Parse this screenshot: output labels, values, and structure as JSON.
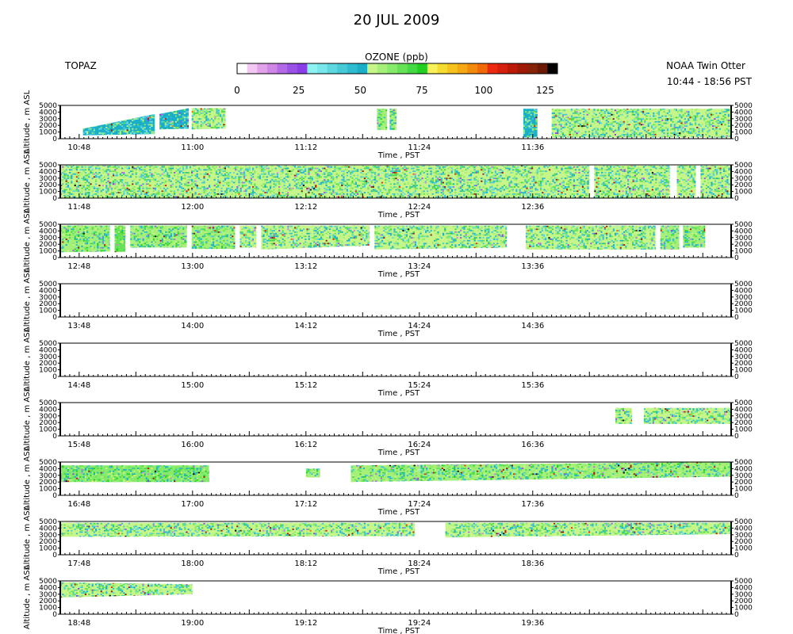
{
  "chart_data": {
    "type": "heatmap",
    "title": "20 JUL 2009",
    "site": "TOPAZ",
    "platform": "NOAA Twin Otter",
    "time_range": "10:44 - 18:56 PST",
    "colorbar": {
      "label": "OZONE (ppb)",
      "ticks": [
        "0",
        "25",
        "50",
        "75",
        "100",
        "125"
      ],
      "range": [
        0,
        130
      ],
      "colors": [
        "#ffffff",
        "#f2c8f2",
        "#e2a2ea",
        "#cf86e6",
        "#b46ae6",
        "#9a52e6",
        "#8a3ee8",
        "#8ef2f2",
        "#78e6ea",
        "#5ed8e0",
        "#46cad8",
        "#30bcd0",
        "#1aaec8",
        "#c6f58a",
        "#a6f07a",
        "#86ea6a",
        "#66e256",
        "#44da44",
        "#22d022",
        "#f8f25a",
        "#f5dc32",
        "#f5c21e",
        "#f5a814",
        "#f28a0c",
        "#f06a08",
        "#ec2a10",
        "#d4200c",
        "#bc1a08",
        "#a01806",
        "#862208",
        "#6c1a04",
        "#000000"
      ]
    },
    "ylabel": "Altitude , m ASL",
    "xlabel": "Time , PST",
    "yticks": [
      "0",
      "1000",
      "2000",
      "3000",
      "4000",
      "5000"
    ],
    "ylim": [
      0,
      5000
    ],
    "panels": [
      {
        "xticks": [
          "10:48",
          "11:00",
          "11:12",
          "11:24",
          "11:36"
        ],
        "segments": [
          {
            "t": [
              4.8,
              20
            ],
            "bottom": [
              500,
              700
            ],
            "top": [
              1500,
              3700
            ],
            "mean": 50
          },
          {
            "t": [
              21,
              27.2
            ],
            "bottom": [
              1400,
              1500
            ],
            "top": [
              3700,
              4600
            ],
            "mean": 52
          },
          {
            "t": [
              27.8,
              35
            ],
            "bottom": [
              1400,
              1500
            ],
            "top": [
              4600,
              4600
            ],
            "mean": 55
          },
          {
            "t": [
              67,
              69.2
            ],
            "bottom": [
              1300,
              1300
            ],
            "top": [
              4500,
              4500
            ],
            "mean": 60
          },
          {
            "t": [
              69.7,
              71.2
            ],
            "bottom": [
              1300,
              1300
            ],
            "top": [
              4500,
              4500
            ],
            "mean": 60
          },
          {
            "t": [
              98,
              101
            ],
            "bottom": [
              200,
              200
            ],
            "top": [
              4500,
              4500
            ],
            "mean": 52
          },
          {
            "t": [
              104,
              142
            ],
            "bottom": [
              200,
              200
            ],
            "top": [
              4500,
              4500
            ],
            "mean": 55
          }
        ]
      },
      {
        "xticks": [
          "11:48",
          "12:00",
          "12:12",
          "12:24",
          "12:36"
        ],
        "segments": [
          {
            "t": [
              0,
              112
            ],
            "bottom": [
              0,
              0
            ],
            "top": [
              4900,
              4900
            ],
            "mean": 55
          },
          {
            "t": [
              113,
              129
            ],
            "bottom": [
              0,
              0
            ],
            "top": [
              4900,
              4900
            ],
            "mean": 55
          },
          {
            "t": [
              130.5,
              134.5
            ],
            "bottom": [
              0,
              0
            ],
            "top": [
              4900,
              4900
            ],
            "mean": 55
          },
          {
            "t": [
              135.5,
              142
            ],
            "bottom": [
              0,
              0
            ],
            "top": [
              4900,
              4900
            ],
            "mean": 55
          }
        ]
      },
      {
        "xticks": [
          "12:48",
          "13:00",
          "13:12",
          "13:24",
          "13:36"
        ],
        "segments": [
          {
            "t": [
              0,
              10.5
            ],
            "bottom": [
              800,
              900
            ],
            "top": [
              4800,
              4800
            ],
            "mean": 60
          },
          {
            "t": [
              11.5,
              13.8
            ],
            "bottom": [
              800,
              900
            ],
            "top": [
              4800,
              4800
            ],
            "mean": 65
          },
          {
            "t": [
              14.8,
              26.8
            ],
            "bottom": [
              1500,
              1500
            ],
            "top": [
              4800,
              4800
            ],
            "mean": 60
          },
          {
            "t": [
              27.8,
              37
            ],
            "bottom": [
              1300,
              1300
            ],
            "top": [
              4800,
              4800
            ],
            "mean": 58
          },
          {
            "t": [
              38,
              41.5
            ],
            "bottom": [
              1500,
              1500
            ],
            "top": [
              4800,
              4800
            ],
            "mean": 55
          },
          {
            "t": [
              42.5,
              65.5
            ],
            "bottom": [
              1200,
              1800
            ],
            "top": [
              4800,
              4800
            ],
            "mean": 55
          },
          {
            "t": [
              66.5,
              94.5
            ],
            "bottom": [
              1200,
              1500
            ],
            "top": [
              4800,
              4800
            ],
            "mean": 55
          },
          {
            "t": [
              98.5,
              126
            ],
            "bottom": [
              1200,
              1200
            ],
            "top": [
              4800,
              4800
            ],
            "mean": 55
          },
          {
            "t": [
              127,
              131
            ],
            "bottom": [
              1200,
              1200
            ],
            "top": [
              4800,
              4800
            ],
            "mean": 58
          },
          {
            "t": [
              131.8,
              136.5
            ],
            "bottom": [
              1500,
              1500
            ],
            "top": [
              4800,
              4800
            ],
            "mean": 60
          }
        ]
      },
      {
        "xticks": [
          "13:48",
          "14:00",
          "14:12",
          "14:24",
          "14:36"
        ],
        "segments": []
      },
      {
        "xticks": [
          "14:48",
          "15:00",
          "15:12",
          "15:24",
          "15:36"
        ],
        "segments": []
      },
      {
        "xticks": [
          "15:48",
          "16:00",
          "16:12",
          "16:24",
          "16:36"
        ],
        "segments": [
          {
            "t": [
              117.5,
              121
            ],
            "bottom": [
              1800,
              1800
            ],
            "top": [
              4200,
              4200
            ],
            "mean": 55
          },
          {
            "t": [
              123.5,
              142
            ],
            "bottom": [
              1800,
              1800
            ],
            "top": [
              4200,
              4200
            ],
            "mean": 55
          }
        ]
      },
      {
        "xticks": [
          "16:48",
          "17:00",
          "17:12",
          "17:24",
          "17:36"
        ],
        "segments": [
          {
            "t": [
              0,
              31.5
            ],
            "bottom": [
              2000,
              2000
            ],
            "top": [
              4500,
              4500
            ],
            "mean": 62
          },
          {
            "t": [
              52,
              55
            ],
            "bottom": [
              2700,
              2700
            ],
            "top": [
              4000,
              4000
            ],
            "mean": 60
          },
          {
            "t": [
              61.5,
              142
            ],
            "bottom": [
              2000,
              2800
            ],
            "top": [
              4500,
              5000
            ],
            "mean": 58
          }
        ]
      },
      {
        "xticks": [
          "17:48",
          "18:00",
          "18:12",
          "18:24",
          "18:36"
        ],
        "segments": [
          {
            "t": [
              0,
              75
            ],
            "bottom": [
              2700,
              2800
            ],
            "top": [
              4800,
              4800
            ],
            "mean": 55
          },
          {
            "t": [
              81.5,
              142
            ],
            "bottom": [
              2600,
              3100
            ],
            "top": [
              4800,
              4800
            ],
            "mean": 55
          }
        ]
      },
      {
        "xticks": [
          "18:48",
          "19:00",
          "19:12",
          "19:24",
          "19:36"
        ],
        "segments": [
          {
            "t": [
              0,
              28
            ],
            "bottom": [
              2500,
              3000
            ],
            "top": [
              4800,
              4500
            ],
            "mean": 55
          }
        ]
      }
    ]
  }
}
